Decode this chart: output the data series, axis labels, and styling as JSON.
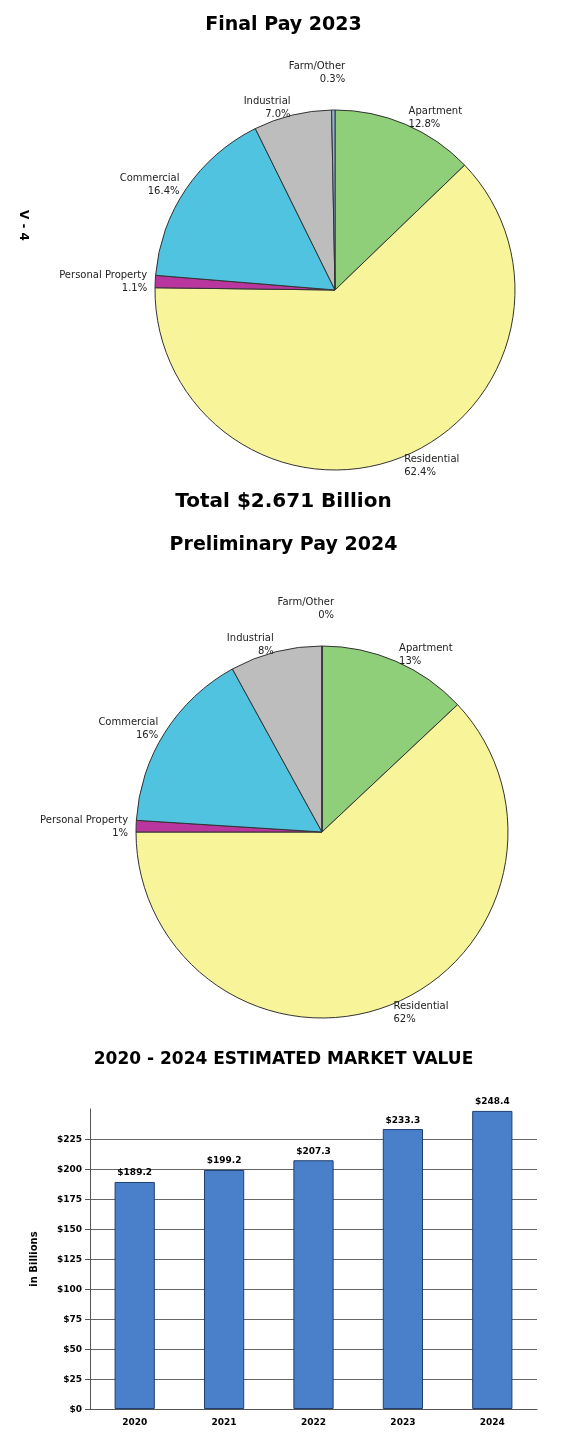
{
  "chart_data": [
    {
      "type": "pie",
      "title": "Final Pay 2023",
      "annotations": [
        "Total $2.671 Billion",
        "V - 4"
      ],
      "categories": [
        "Apartment",
        "Residential",
        "Personal Property",
        "Commercial",
        "Industrial",
        "Farm/Other"
      ],
      "values": [
        12.8,
        62.4,
        1.1,
        16.4,
        7.0,
        0.3
      ],
      "value_labels": [
        "12.8%",
        "62.4%",
        "1.1%",
        "16.4%",
        "7.0%",
        "0.3%"
      ],
      "colors": [
        "#8fcf7a",
        "#f7f49a",
        "#b8369e",
        "#4fc3e0",
        "#bdbdbd",
        "#8fb3d9"
      ]
    },
    {
      "type": "pie",
      "title": "Preliminary Pay 2024",
      "categories": [
        "Apartment",
        "Residential",
        "Personal Property",
        "Commercial",
        "Industrial",
        "Farm/Other"
      ],
      "values": [
        13,
        62,
        1,
        16,
        8,
        0
      ],
      "value_labels": [
        "13%",
        "62%",
        "1%",
        "16%",
        "8%",
        "0%"
      ],
      "colors": [
        "#8fcf7a",
        "#f7f49a",
        "#b8369e",
        "#4fc3e0",
        "#bdbdbd",
        "#8fb3d9"
      ]
    },
    {
      "type": "bar",
      "title": "2020 - 2024 ESTIMATED MARKET VALUE",
      "ylabel": "in Billions",
      "categories": [
        "2020",
        "2021",
        "2022",
        "2023",
        "2024"
      ],
      "values": [
        189.2,
        199.2,
        207.3,
        233.3,
        248.4
      ],
      "value_labels": [
        "$189.2",
        "$199.2",
        "$207.3",
        "$233.3",
        "$248.4"
      ],
      "color": "#4a7fc9",
      "ylim": [
        0,
        250
      ],
      "yticks": [
        {
          "value": 0,
          "label": "$0"
        },
        {
          "value": 25,
          "label": "$25"
        },
        {
          "value": 50,
          "label": "$50"
        },
        {
          "value": 75,
          "label": "$75"
        },
        {
          "value": 100,
          "label": "$100"
        },
        {
          "value": 125,
          "label": "$125"
        },
        {
          "value": 150,
          "label": "$150"
        },
        {
          "value": 175,
          "label": "$175"
        },
        {
          "value": 200,
          "label": "$200"
        },
        {
          "value": 225,
          "label": "$225"
        }
      ],
      "grid": "y"
    }
  ]
}
